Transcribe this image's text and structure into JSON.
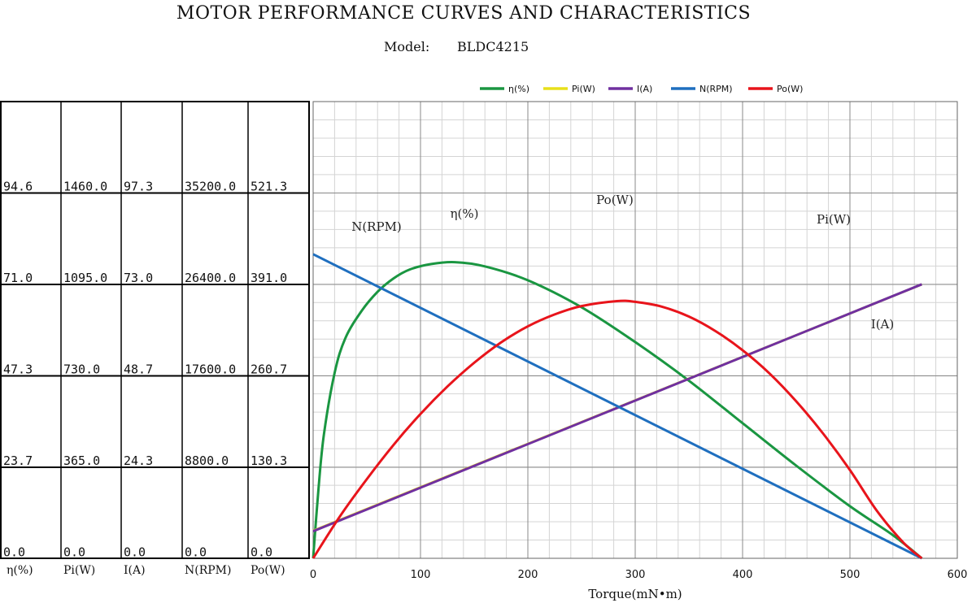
{
  "header": {
    "title": "MOTOR PERFORMANCE CURVES AND CHARACTERISTICS",
    "model_label": "Model:",
    "model_value": "BLDC4215"
  },
  "table": {
    "headers": [
      "η(%)",
      "Pi(W)",
      "I(A)",
      "N(RPM)",
      "Po(W)"
    ],
    "rows": [
      [
        "94.6",
        "1460.0",
        "97.3",
        "35200.0",
        "521.3"
      ],
      [
        "71.0",
        "1095.0",
        "73.0",
        "26400.0",
        "391.0"
      ],
      [
        "47.3",
        "730.0",
        "48.7",
        "17600.0",
        "260.7"
      ],
      [
        "23.7",
        "365.0",
        "24.3",
        "8800.0",
        "130.3"
      ],
      [
        "0.0",
        "0.0",
        "0.0",
        "0.0",
        "0.0"
      ]
    ]
  },
  "chart_data": {
    "type": "line",
    "xlabel": "Torque(mN•m)",
    "xlim": [
      0,
      600
    ],
    "xticks": [
      "0",
      "100",
      "200",
      "300",
      "400",
      "500",
      "600"
    ],
    "ylim_fraction": [
      0,
      1
    ],
    "grid": true,
    "legend_position": "top-center",
    "series": [
      {
        "name": "η(%)",
        "color": "#1a9641",
        "axis_max": 94.6,
        "x": [
          0,
          5,
          10,
          20,
          30,
          45,
          60,
          75,
          90,
          110,
          132,
          160,
          200,
          250,
          300,
          350,
          400,
          450,
          500,
          540,
          567
        ],
        "y": [
          0,
          18,
          32,
          48,
          57,
          64,
          69,
          72.5,
          74.8,
          76.2,
          76.7,
          75.6,
          72,
          65,
          56,
          46,
          35,
          24,
          13.5,
          6,
          0
        ]
      },
      {
        "name": "Pi(W)",
        "color": "#e8e01a",
        "x": [
          0,
          567
        ],
        "y": [
          110,
          1095
        ]
      },
      {
        "name": "I(A)",
        "color": "#7030a0",
        "x": [
          0,
          567
        ],
        "y": [
          7.2,
          73.0
        ]
      },
      {
        "name": "N(RPM)",
        "color": "#1f6fbf",
        "x": [
          0,
          567
        ],
        "y": [
          29300,
          0
        ]
      },
      {
        "name": "Po(W)",
        "color": "#e8141b",
        "x": [
          0,
          25,
          50,
          75,
          100,
          125,
          150,
          175,
          200,
          225,
          250,
          283,
          300,
          325,
          350,
          375,
          400,
          425,
          450,
          475,
          500,
          525,
          550,
          567
        ],
        "y": [
          0,
          60,
          113,
          162,
          206,
          245,
          279,
          308,
          331,
          348,
          360,
          367,
          366,
          359,
          345,
          324,
          297,
          264,
          224,
          178,
          126,
          68,
          22,
          0
        ]
      }
    ],
    "annotations": [
      "N(RPM)",
      "η(%)",
      "Po(W)",
      "Pi(W)",
      "I(A)"
    ]
  }
}
